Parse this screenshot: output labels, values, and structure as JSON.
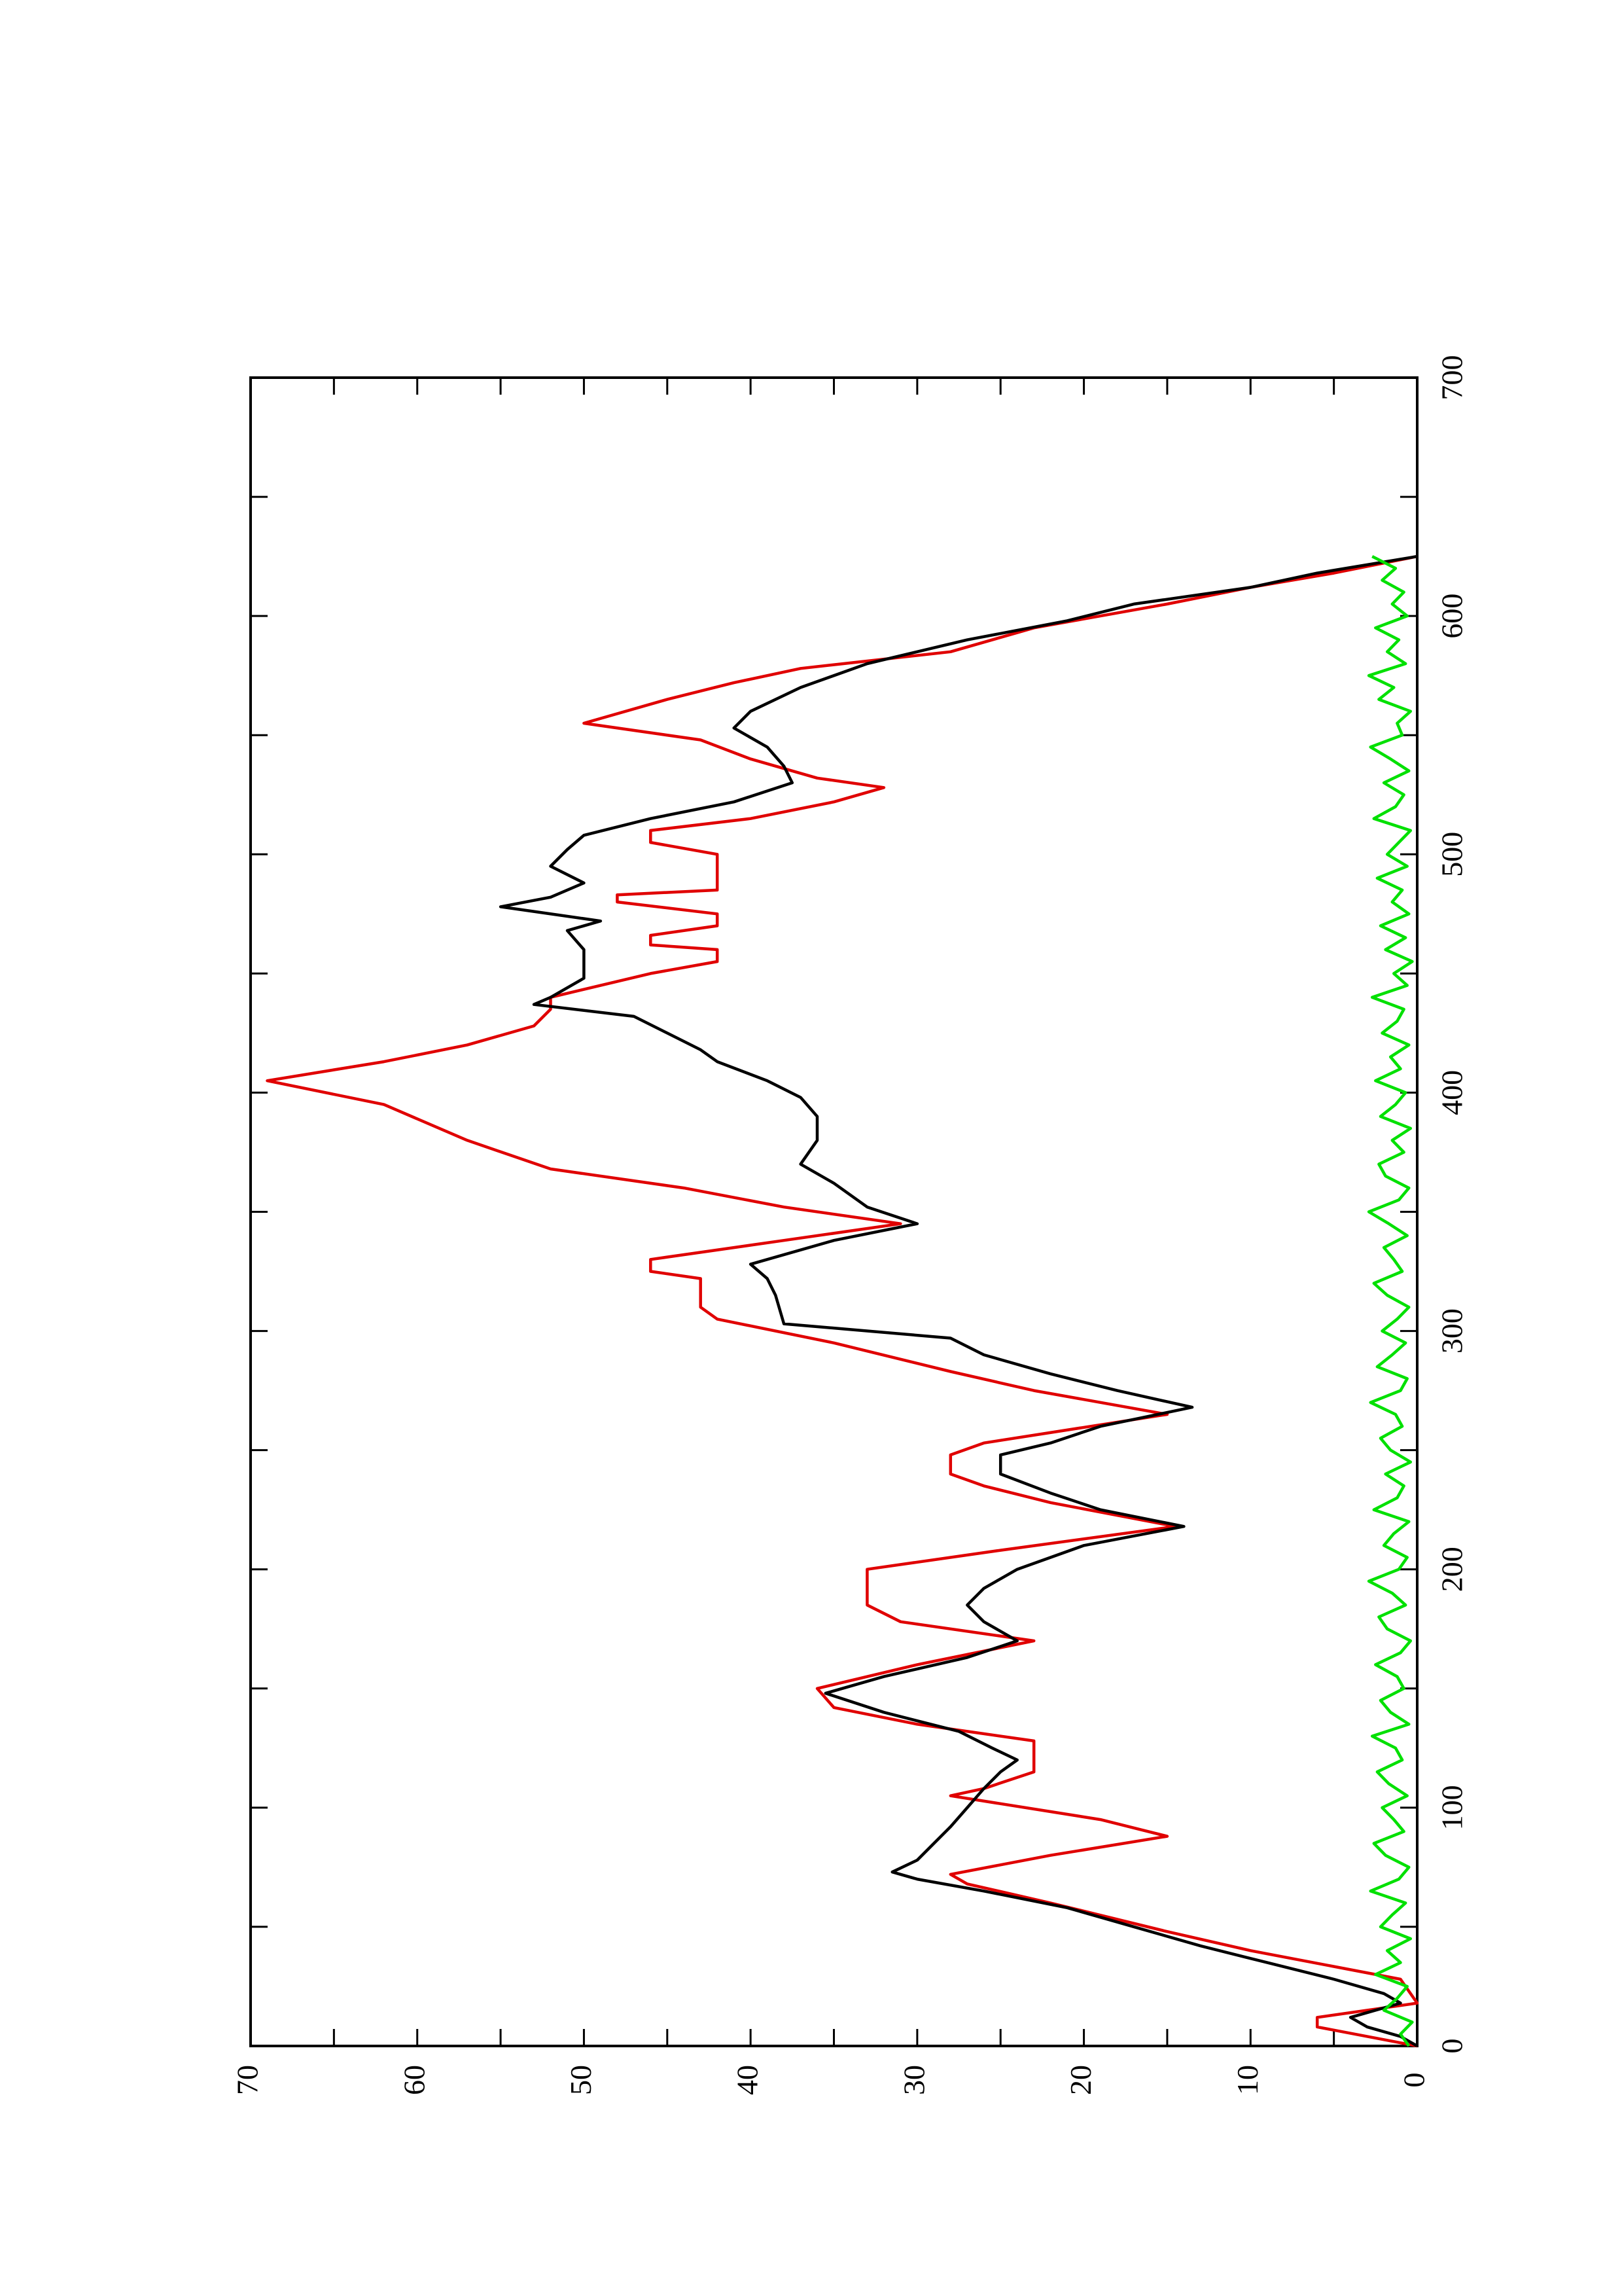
{
  "chart_data": {
    "type": "line",
    "xlim": [
      0,
      700
    ],
    "xticks": [
      0,
      100,
      200,
      300,
      400,
      500,
      600,
      700
    ],
    "xminorticks": [
      50,
      150,
      250,
      350,
      450,
      550,
      650
    ],
    "ylim": [
      0,
      70
    ],
    "yticks": [
      0,
      10,
      20,
      30,
      40,
      50,
      60,
      70
    ],
    "yminorticks": [
      5,
      15,
      25,
      35,
      45,
      55,
      65
    ],
    "series": [
      {
        "color": "#e00000",
        "x": [
          0,
          8,
          12,
          18,
          28,
          40,
          48,
          60,
          68,
          72,
          80,
          88,
          95,
          105,
          108,
          115,
          128,
          135,
          142,
          150,
          160,
          170,
          178,
          185,
          200,
          208,
          218,
          228,
          235,
          240,
          248,
          253,
          265,
          275,
          283,
          295,
          305,
          310,
          322,
          325,
          330,
          338,
          345,
          352,
          360,
          368,
          380,
          395,
          405,
          413,
          420,
          428,
          435,
          440,
          450,
          455,
          460,
          462,
          466,
          470,
          475,
          480,
          483,
          485,
          500,
          505,
          510,
          515,
          522,
          528,
          532,
          540,
          548,
          555,
          565,
          572,
          578,
          585,
          595,
          605,
          612,
          618,
          625
        ],
        "values": [
          0,
          6,
          6,
          0,
          1,
          10,
          15,
          22,
          27,
          28,
          22,
          15,
          19,
          28,
          26,
          23,
          23,
          30,
          35,
          36,
          30,
          23,
          31,
          33,
          33,
          25,
          14.5,
          22,
          26,
          28,
          28,
          26,
          15,
          23,
          28,
          35,
          42,
          43,
          43,
          46,
          46,
          38,
          31,
          38,
          44,
          52,
          57,
          62,
          69,
          62,
          57,
          53,
          52,
          52,
          46,
          42,
          42,
          46,
          46,
          42,
          42,
          48,
          48,
          42,
          42,
          46,
          46,
          40,
          35,
          32,
          36,
          40,
          43,
          50,
          45,
          41,
          37,
          28,
          23,
          15,
          10,
          5,
          0
        ]
      },
      {
        "color": "#000000",
        "x": [
          0,
          4,
          8,
          12,
          18,
          22,
          28,
          35,
          42,
          50,
          58,
          65,
          70,
          73,
          78,
          85,
          92,
          100,
          108,
          115,
          120,
          125,
          132,
          140,
          148,
          155,
          163,
          170,
          178,
          185,
          192,
          200,
          210,
          218,
          225,
          232,
          240,
          248,
          253,
          260,
          268,
          275,
          282,
          290,
          297,
          303,
          315,
          322,
          328,
          338,
          345,
          352,
          362,
          370,
          380,
          390,
          398,
          405,
          413,
          418,
          425,
          432,
          437,
          440,
          448,
          460,
          468,
          472,
          478,
          482,
          488,
          495,
          502,
          508,
          515,
          522,
          530,
          537,
          545,
          553,
          560,
          570,
          580,
          590,
          598,
          605,
          612,
          618,
          625
        ],
        "values": [
          0,
          1,
          3,
          4,
          1,
          2,
          5,
          9,
          13,
          17,
          21,
          26,
          30,
          31.5,
          30,
          29,
          28,
          27,
          26,
          25,
          24,
          25.5,
          27.5,
          32,
          35.5,
          32,
          27,
          24,
          26,
          27,
          26,
          24,
          20,
          14,
          19,
          22,
          25,
          25,
          22,
          19,
          13.5,
          18,
          22,
          26,
          28,
          38,
          38.5,
          39,
          40,
          35,
          30,
          33,
          35,
          37,
          36,
          36,
          37,
          39,
          42,
          43,
          45,
          47,
          53,
          52,
          50,
          50,
          51,
          49,
          55,
          52,
          50,
          52,
          51,
          50,
          46,
          41,
          37.5,
          38,
          39,
          41,
          40,
          37,
          33,
          27,
          21,
          17,
          10,
          6,
          0
        ]
      },
      {
        "color": "#00e000",
        "x": [
          0,
          5,
          10,
          15,
          20,
          25,
          30,
          35,
          40,
          45,
          50,
          55,
          60,
          65,
          70,
          75,
          80,
          85,
          90,
          95,
          100,
          105,
          110,
          115,
          120,
          125,
          130,
          135,
          140,
          145,
          150,
          155,
          160,
          165,
          170,
          175,
          180,
          185,
          190,
          195,
          200,
          205,
          210,
          215,
          220,
          225,
          230,
          235,
          240,
          245,
          250,
          255,
          260,
          265,
          270,
          275,
          280,
          285,
          290,
          295,
          300,
          305,
          310,
          315,
          320,
          325,
          330,
          335,
          340,
          345,
          350,
          355,
          360,
          365,
          370,
          375,
          380,
          385,
          390,
          395,
          400,
          405,
          410,
          415,
          420,
          425,
          430,
          435,
          440,
          445,
          450,
          455,
          460,
          465,
          470,
          475,
          480,
          485,
          490,
          495,
          500,
          505,
          510,
          515,
          520,
          525,
          530,
          535,
          540,
          545,
          550,
          555,
          560,
          565,
          570,
          575,
          580,
          585,
          590,
          595,
          600,
          605,
          610,
          615,
          620,
          625
        ],
        "values": [
          0.5,
          1,
          0.3,
          2,
          1.2,
          0.6,
          2.5,
          1,
          1.8,
          0.4,
          2.2,
          1.5,
          0.7,
          2.8,
          1.1,
          0.5,
          1.9,
          2.6,
          0.8,
          1.4,
          2.1,
          0.6,
          1.7,
          2.4,
          0.9,
          1.3,
          2.7,
          0.5,
          1.6,
          2.2,
          0.8,
          1.2,
          2.5,
          1,
          0.4,
          1.8,
          2.3,
          0.7,
          1.5,
          2.9,
          1.1,
          0.6,
          2,
          1.4,
          0.5,
          2.6,
          1.2,
          0.8,
          1.9,
          0.4,
          1.6,
          2.2,
          0.9,
          1.3,
          2.8,
          1,
          0.6,
          2.4,
          1.5,
          0.7,
          2.1,
          1.2,
          0.5,
          1.8,
          2.6,
          0.9,
          1.4,
          2,
          0.6,
          1.7,
          2.9,
          1.1,
          0.5,
          1.9,
          2.3,
          0.8,
          1.5,
          0.4,
          2.2,
          1.3,
          0.7,
          2.5,
          1,
          1.6,
          0.5,
          2.1,
          1.2,
          0.8,
          2.7,
          0.6,
          1.4,
          0.3,
          1.9,
          0.7,
          2.2,
          0.5,
          1.5,
          0.9,
          2.4,
          0.6,
          1.8,
          1.1,
          0.4,
          2.6,
          1.3,
          0.8,
          2,
          0.5,
          1.6,
          2.8,
          0.9,
          1.2,
          0.4,
          2.3,
          1.4,
          2.9,
          0.7,
          1.8,
          1.1,
          2.5,
          0.6,
          1.5,
          0.8,
          2.1,
          1.3,
          2.7
        ]
      }
    ]
  }
}
